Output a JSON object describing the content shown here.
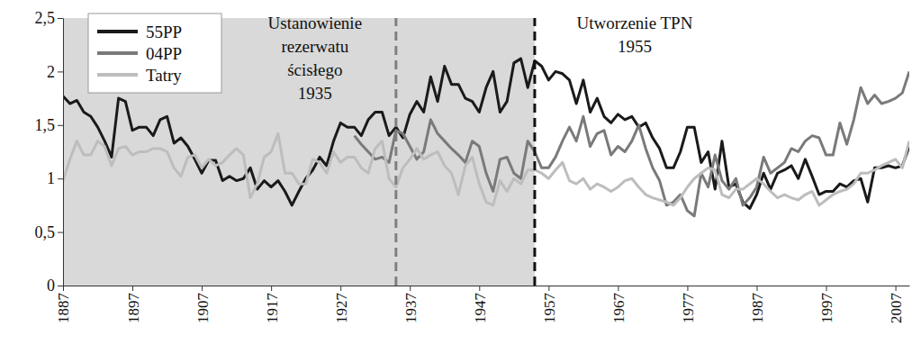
{
  "chart_data": {
    "type": "line",
    "x": [
      1887,
      1888,
      1889,
      1890,
      1891,
      1892,
      1893,
      1894,
      1895,
      1896,
      1897,
      1898,
      1899,
      1900,
      1901,
      1902,
      1903,
      1904,
      1905,
      1906,
      1907,
      1908,
      1909,
      1910,
      1911,
      1912,
      1913,
      1914,
      1915,
      1916,
      1917,
      1918,
      1919,
      1920,
      1921,
      1922,
      1923,
      1924,
      1925,
      1926,
      1927,
      1928,
      1929,
      1930,
      1931,
      1932,
      1933,
      1934,
      1935,
      1936,
      1937,
      1938,
      1939,
      1940,
      1941,
      1942,
      1943,
      1944,
      1945,
      1946,
      1947,
      1948,
      1949,
      1950,
      1951,
      1952,
      1953,
      1954,
      1955,
      1956,
      1957,
      1958,
      1959,
      1960,
      1961,
      1962,
      1963,
      1964,
      1965,
      1966,
      1967,
      1968,
      1969,
      1970,
      1971,
      1972,
      1973,
      1974,
      1975,
      1976,
      1977,
      1978,
      1979,
      1980,
      1981,
      1982,
      1983,
      1984,
      1985,
      1986,
      1987,
      1988,
      1989,
      1990,
      1991,
      1992,
      1993,
      1994,
      1995,
      1996,
      1997,
      1998,
      1999,
      2000,
      2001,
      2002,
      2003,
      2004,
      2005,
      2006,
      2007,
      2008,
      2009
    ],
    "series": [
      {
        "name": "55PP",
        "color": "#1a1a1a",
        "values": [
          1.77,
          1.7,
          1.73,
          1.62,
          1.58,
          1.48,
          1.35,
          1.2,
          1.75,
          1.72,
          1.45,
          1.48,
          1.48,
          1.4,
          1.55,
          1.58,
          1.33,
          1.38,
          1.3,
          1.18,
          1.05,
          1.17,
          1.17,
          0.98,
          1.02,
          0.98,
          1.0,
          1.1,
          0.9,
          0.98,
          0.92,
          0.98,
          0.88,
          0.75,
          0.88,
          1.0,
          1.08,
          1.2,
          1.12,
          1.35,
          1.52,
          1.48,
          1.48,
          1.4,
          1.55,
          1.62,
          1.62,
          1.4,
          1.48,
          1.38,
          1.6,
          1.72,
          1.62,
          1.95,
          1.72,
          2.05,
          1.88,
          1.88,
          1.75,
          1.72,
          1.62,
          1.85,
          2.0,
          1.62,
          1.72,
          2.08,
          2.12,
          1.85,
          2.1,
          2.05,
          1.92,
          2.0,
          1.98,
          1.92,
          1.7,
          1.92,
          1.62,
          1.75,
          1.58,
          1.52,
          1.6,
          1.55,
          1.58,
          1.48,
          1.52,
          1.38,
          1.28,
          1.1,
          1.1,
          1.25,
          1.48,
          1.48,
          1.15,
          1.25,
          0.9,
          1.35,
          0.92,
          0.95,
          0.78,
          0.72,
          0.85,
          1.05,
          0.9,
          1.05,
          1.08,
          1.12,
          1.0,
          1.18,
          1.02,
          0.85,
          0.88,
          0.88,
          0.95,
          0.92,
          0.98,
          1.0,
          0.78,
          1.1,
          1.1,
          1.12,
          1.1,
          1.12,
          1.3
        ]
      },
      {
        "name": "04PP",
        "color": "#7a7a7a",
        "values": [
          null,
          null,
          null,
          null,
          null,
          null,
          null,
          null,
          null,
          null,
          null,
          null,
          null,
          null,
          null,
          null,
          null,
          null,
          null,
          null,
          null,
          null,
          null,
          null,
          null,
          null,
          null,
          null,
          null,
          null,
          null,
          null,
          null,
          null,
          null,
          null,
          null,
          null,
          null,
          null,
          null,
          null,
          1.4,
          1.32,
          1.25,
          1.18,
          1.2,
          1.15,
          1.45,
          1.42,
          1.3,
          1.18,
          1.25,
          1.55,
          1.42,
          1.35,
          1.28,
          1.22,
          1.15,
          1.35,
          1.3,
          1.05,
          0.88,
          1.18,
          1.2,
          1.05,
          1.0,
          1.35,
          1.25,
          1.1,
          1.1,
          1.2,
          1.35,
          1.48,
          1.35,
          1.58,
          1.3,
          1.42,
          1.45,
          1.22,
          1.3,
          1.25,
          1.35,
          1.5,
          1.28,
          1.1,
          0.98,
          0.75,
          0.78,
          0.85,
          0.7,
          0.65,
          1.05,
          0.92,
          1.22,
          0.98,
          0.9,
          1.0,
          0.75,
          0.82,
          0.92,
          1.2,
          1.05,
          1.1,
          1.15,
          1.28,
          1.25,
          1.35,
          1.4,
          1.38,
          1.22,
          1.22,
          1.52,
          1.32,
          1.55,
          1.85,
          1.7,
          1.78,
          1.7,
          1.72,
          1.75,
          1.8,
          2.0
        ]
      },
      {
        "name": "Tatry",
        "color": "#bdbdbd",
        "values": [
          0.98,
          1.18,
          1.35,
          1.22,
          1.22,
          1.35,
          1.3,
          1.12,
          1.28,
          1.3,
          1.22,
          1.25,
          1.25,
          1.28,
          1.28,
          1.25,
          1.1,
          1.02,
          1.2,
          1.22,
          1.1,
          1.18,
          1.12,
          1.15,
          1.22,
          1.28,
          1.22,
          0.82,
          0.95,
          1.2,
          1.25,
          1.42,
          1.05,
          1.05,
          0.95,
          0.95,
          1.18,
          1.15,
          1.05,
          1.25,
          1.15,
          1.2,
          1.2,
          1.1,
          1.05,
          1.28,
          1.35,
          1.0,
          0.92,
          1.1,
          1.18,
          1.28,
          1.18,
          1.22,
          1.25,
          1.12,
          1.05,
          0.85,
          1.12,
          1.2,
          0.95,
          0.78,
          0.75,
          0.98,
          0.88,
          1.0,
          0.95,
          1.08,
          1.08,
          1.05,
          1.0,
          1.08,
          1.15,
          0.98,
          0.95,
          1.0,
          0.9,
          0.95,
          0.92,
          0.88,
          0.92,
          0.98,
          1.0,
          0.92,
          0.85,
          0.82,
          0.8,
          0.78,
          0.75,
          0.82,
          0.92,
          1.0,
          1.05,
          1.1,
          1.08,
          0.85,
          0.82,
          0.9,
          0.9,
          0.95,
          1.0,
          0.95,
          0.88,
          0.82,
          0.85,
          0.82,
          0.8,
          0.85,
          0.88,
          0.75,
          0.8,
          0.85,
          0.88,
          0.9,
          0.95,
          1.05,
          1.05,
          1.08,
          1.12,
          1.15,
          1.18,
          1.1,
          1.35
        ]
      }
    ],
    "xlim": [
      1887,
      2009
    ],
    "xticks": [
      1887,
      1897,
      1907,
      1917,
      1927,
      1937,
      1947,
      1957,
      1967,
      1977,
      1987,
      1997,
      2007
    ],
    "ylim": [
      0,
      2.5
    ],
    "yticks": [
      0,
      {
        "value": 0.5,
        "label": "0,5"
      },
      1,
      {
        "value": 1.5,
        "label": "1,5"
      },
      2,
      {
        "value": 2.5,
        "label": "2,5"
      }
    ],
    "legend": "upper left",
    "annotations": [
      {
        "x": 1935,
        "text": [
          "Ustanowienie",
          "rezerwatu",
          "ścisłego",
          "1935"
        ],
        "color": "#808080",
        "line_style": "dashed"
      },
      {
        "x": 1955,
        "text": [
          "Utworzenie TPN",
          "1955"
        ],
        "color": "#111111",
        "line_style": "dashed"
      }
    ]
  }
}
